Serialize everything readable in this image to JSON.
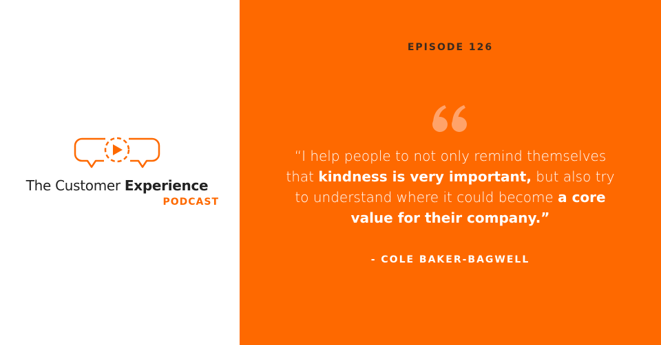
{
  "logo": {
    "title_regular": "The Customer",
    "title_bold": "Experience",
    "subtitle": "PODCAST"
  },
  "episode": "EPISODE 126",
  "quote": {
    "segments": [
      {
        "text": "“I help people to not only remind themselves that ",
        "bold": false
      },
      {
        "text": "kindness is very important,",
        "bold": true
      },
      {
        "text": " but also try to understand where it could become ",
        "bold": false
      },
      {
        "text": "a core value for their company.”",
        "bold": true
      }
    ]
  },
  "author": "- COLE BAKER-BAGWELL"
}
